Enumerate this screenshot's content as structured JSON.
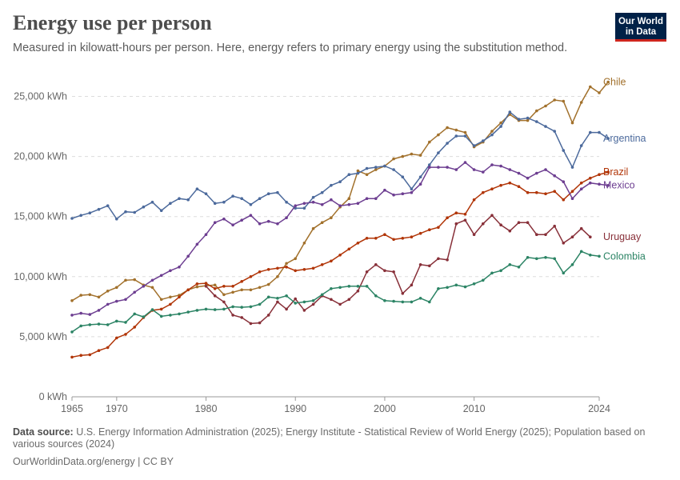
{
  "header": {
    "title": "Energy use per person",
    "subtitle": "Measured in kilowatt-hours per person. Here, energy refers to primary energy using the substitution method."
  },
  "logo": {
    "line1": "Our World",
    "line2": "in Data",
    "bg_color": "#002147",
    "accent_color": "#ce261e"
  },
  "footer": {
    "source_label": "Data source:",
    "source_text": "U.S. Energy Information Administration (2025); Energy Institute - Statistical Review of World Energy (2025); Population based on various sources (2024)",
    "license": "OurWorldinData.org/energy | CC BY"
  },
  "chart_data": {
    "type": "line",
    "x_ticks": [
      1965,
      1970,
      1980,
      1990,
      2000,
      2010,
      2024
    ],
    "y_ticks": [
      0,
      5000,
      10000,
      15000,
      20000,
      25000
    ],
    "y_tick_labels": [
      "0 kWh",
      "5,000 kWh",
      "10,000 kWh",
      "15,000 kWh",
      "20,000 kWh",
      "25,000 kWh"
    ],
    "xlim": [
      1965,
      2024
    ],
    "ylim": [
      0,
      26500
    ],
    "grid": "horizontal dashed",
    "legend": "inline labels at right end of lines",
    "series": [
      {
        "name": "Chile",
        "color": "#a2712c",
        "start_year": 1965,
        "values": [
          8000,
          8450,
          8500,
          8300,
          8800,
          9100,
          9700,
          9750,
          9300,
          9100,
          8100,
          8300,
          8450,
          8900,
          9150,
          9250,
          9300,
          8500,
          8700,
          8900,
          8900,
          9100,
          9350,
          10000,
          11100,
          11500,
          12800,
          14000,
          14500,
          14900,
          15800,
          16500,
          18800,
          18500,
          18900,
          19200,
          19800,
          20000,
          20200,
          20100,
          21200,
          21800,
          22400,
          22200,
          22000,
          20800,
          21200,
          22100,
          22800,
          23500,
          23000,
          23000,
          23800,
          24200,
          24700,
          24600,
          22800,
          24500,
          25800,
          25300,
          26200
        ]
      },
      {
        "name": "Argentina",
        "color": "#4c6a9c",
        "start_year": 1965,
        "values": [
          14850,
          15100,
          15300,
          15600,
          15900,
          14800,
          15400,
          15350,
          15800,
          16200,
          15500,
          16100,
          16500,
          16400,
          17300,
          16900,
          16100,
          16200,
          16700,
          16500,
          16000,
          16500,
          16900,
          17000,
          16200,
          15700,
          15700,
          16600,
          17000,
          17600,
          17900,
          18500,
          18600,
          19000,
          19100,
          19200,
          18900,
          18300,
          17300,
          18300,
          19300,
          20300,
          21100,
          21700,
          21700,
          20900,
          21300,
          21800,
          22500,
          23700,
          23100,
          23200,
          22900,
          22500,
          22100,
          20500,
          19100,
          20900,
          22000,
          22000,
          21500
        ]
      },
      {
        "name": "Brazil",
        "color": "#b13507",
        "start_year": 1965,
        "values": [
          3300,
          3450,
          3500,
          3850,
          4100,
          4900,
          5200,
          5800,
          6600,
          7200,
          7300,
          7700,
          8300,
          8900,
          9400,
          9450,
          9000,
          9200,
          9200,
          9600,
          10000,
          10400,
          10600,
          10700,
          10800,
          10500,
          10600,
          10700,
          11000,
          11300,
          11800,
          12300,
          12800,
          13200,
          13200,
          13500,
          13100,
          13200,
          13300,
          13600,
          13900,
          14100,
          14900,
          15300,
          15200,
          16400,
          17000,
          17300,
          17600,
          17800,
          17500,
          17000,
          17000,
          16900,
          17100,
          16400,
          17100,
          17800,
          18200,
          18500,
          18700
        ]
      },
      {
        "name": "Mexico",
        "color": "#6d3e91",
        "start_year": 1965,
        "values": [
          6800,
          6950,
          6850,
          7200,
          7700,
          7950,
          8100,
          8700,
          9200,
          9700,
          10100,
          10500,
          10800,
          11700,
          12700,
          13500,
          14500,
          14800,
          14300,
          14700,
          15100,
          14400,
          14600,
          14400,
          14900,
          15900,
          16100,
          16200,
          16000,
          16400,
          15900,
          16000,
          16100,
          16500,
          16500,
          17200,
          16800,
          16900,
          17000,
          17700,
          19100,
          19100,
          19100,
          18900,
          19500,
          18900,
          18700,
          19300,
          19200,
          18900,
          18600,
          18200,
          18600,
          18900,
          18400,
          17900,
          16500,
          17300,
          17800,
          17700,
          17600
        ]
      },
      {
        "name": "Uruguay",
        "color": "#883039",
        "start_year": 1980,
        "values": [
          9200,
          8400,
          7900,
          6800,
          6600,
          6100,
          6150,
          6800,
          7900,
          7300,
          8150,
          7200,
          7700,
          8400,
          8100,
          7700,
          8100,
          8800,
          10400,
          11000,
          10500,
          10400,
          8600,
          9300,
          11000,
          10900,
          11500,
          11400,
          14400,
          14700,
          13500,
          14400,
          15100,
          14300,
          13800,
          14500,
          14500,
          13500,
          13500,
          14200,
          12800,
          13300,
          14000,
          13300
        ]
      },
      {
        "name": "Colombia",
        "color": "#2c8465",
        "start_year": 1965,
        "values": [
          5400,
          5900,
          6000,
          6050,
          6000,
          6300,
          6200,
          6900,
          6650,
          7250,
          6700,
          6800,
          6900,
          7050,
          7200,
          7300,
          7250,
          7300,
          7500,
          7450,
          7500,
          7700,
          8300,
          8200,
          8400,
          7800,
          7900,
          8000,
          8500,
          9000,
          9100,
          9200,
          9200,
          9200,
          8400,
          8000,
          7950,
          7900,
          7900,
          8200,
          7900,
          9000,
          9100,
          9300,
          9150,
          9400,
          9700,
          10300,
          10500,
          11000,
          10800,
          11600,
          11500,
          11600,
          11500,
          10300,
          11000,
          12100,
          11800,
          11700
        ]
      }
    ]
  }
}
